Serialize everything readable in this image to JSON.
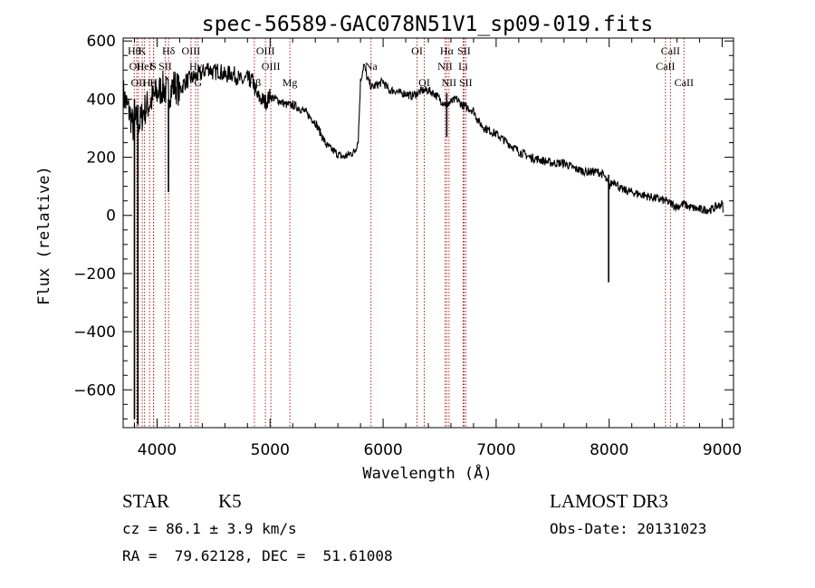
{
  "chart_data": {
    "type": "line",
    "title": "spec-56589-GAC078N51V1_sp09-019.fits",
    "xlabel": "Wavelength (Å)",
    "ylabel": "Flux (relative)",
    "xlim": [
      3700,
      9100
    ],
    "ylim": [
      -730,
      610
    ],
    "xticks": [
      4000,
      5000,
      6000,
      7000,
      8000,
      9000
    ],
    "xtick_labels": [
      "4000",
      "5000",
      "6000",
      "7000",
      "8000",
      "9000"
    ],
    "yticks": [
      -600,
      -400,
      -200,
      0,
      200,
      400,
      600
    ],
    "ytick_labels": [
      "−600",
      "−400",
      "−200",
      "0",
      "200",
      "400",
      "600"
    ],
    "grid": false,
    "series": [
      {
        "name": "flux",
        "x": [
          3700,
          3730,
          3760,
          3790,
          3820,
          3850,
          3880,
          3920,
          3960,
          4000,
          4050,
          4100,
          4150,
          4200,
          4250,
          4300,
          4350,
          4400,
          4450,
          4500,
          4550,
          4600,
          4650,
          4700,
          4750,
          4800,
          4850,
          4880,
          4920,
          4960,
          5000,
          5050,
          5100,
          5150,
          5200,
          5300,
          5400,
          5500,
          5600,
          5650,
          5700,
          5750,
          5780,
          5800,
          5830,
          5860,
          5900,
          5950,
          6000,
          6050,
          6100,
          6150,
          6200,
          6250,
          6300,
          6350,
          6400,
          6450,
          6500,
          6560,
          6600,
          6650,
          6700,
          6750,
          6800,
          6850,
          6900,
          7000,
          7100,
          7200,
          7300,
          7400,
          7500,
          7600,
          7700,
          7800,
          7900,
          7950,
          8000,
          8020,
          8050,
          8100,
          8200,
          8300,
          8400,
          8500,
          8550,
          8600,
          8660,
          8700,
          8800,
          8900,
          9000,
          9010
        ],
        "y": [
          420,
          380,
          350,
          300,
          330,
          320,
          360,
          380,
          400,
          420,
          440,
          420,
          450,
          430,
          460,
          470,
          480,
          490,
          510,
          490,
          500,
          480,
          490,
          480,
          460,
          470,
          460,
          410,
          400,
          390,
          410,
          400,
          390,
          380,
          380,
          360,
          320,
          240,
          210,
          200,
          210,
          220,
          260,
          460,
          520,
          470,
          440,
          450,
          460,
          430,
          430,
          420,
          420,
          410,
          420,
          430,
          430,
          420,
          400,
          380,
          390,
          400,
          380,
          370,
          360,
          320,
          300,
          280,
          250,
          220,
          200,
          190,
          180,
          180,
          160,
          150,
          150,
          140,
          100,
          110,
          120,
          90,
          80,
          70,
          60,
          50,
          40,
          30,
          40,
          30,
          20,
          20,
          40,
          20
        ]
      }
    ],
    "features": [
      {
        "x": 7995,
        "y_min": -230,
        "y_max": 140
      },
      {
        "x": 3830,
        "y_min": -720,
        "y_max": 380
      },
      {
        "x": 3800,
        "y_min": -700,
        "y_max": 400
      },
      {
        "x": 4101,
        "y_min": 80,
        "y_max": 400
      },
      {
        "x": 6563,
        "y_min": 270,
        "y_max": 420
      }
    ],
    "lines": [
      {
        "x": 3798,
        "label": "Hθ",
        "row": 0
      },
      {
        "x": 3820,
        "label": "OII",
        "row": 1
      },
      {
        "x": 3835,
        "label": "OII",
        "row": 2
      },
      {
        "x": 3869,
        "label": "K",
        "row": 0
      },
      {
        "x": 3889,
        "label": "HeI",
        "row": 1
      },
      {
        "x": 3934,
        "label": "Hη",
        "row": 2
      },
      {
        "x": 3968,
        "label": "S",
        "row": 1
      },
      {
        "x": 3970,
        "label": "H",
        "row": 2
      },
      {
        "x": 4072,
        "label": "SII",
        "row": 1
      },
      {
        "x": 4102,
        "label": "Hδ",
        "row": 0
      },
      {
        "x": 4300,
        "label": "OIII",
        "row": 0
      },
      {
        "x": 4341,
        "label": "Hγ",
        "row": 1
      },
      {
        "x": 4363,
        "label": "G",
        "row": 2
      },
      {
        "x": 4861,
        "label": "Hβ",
        "row": 2
      },
      {
        "x": 4959,
        "label": "OIII",
        "row": 0
      },
      {
        "x": 5007,
        "label": "OIII",
        "row": 1
      },
      {
        "x": 5175,
        "label": "Mg",
        "row": 2
      },
      {
        "x": 5893,
        "label": "Na",
        "row": 1
      },
      {
        "x": 6300,
        "label": "OI",
        "row": 0
      },
      {
        "x": 6364,
        "label": "OI",
        "row": 2
      },
      {
        "x": 6548,
        "label": "NII",
        "row": 1
      },
      {
        "x": 6563,
        "label": "Hα",
        "row": 0
      },
      {
        "x": 6583,
        "label": "NII",
        "row": 2
      },
      {
        "x": 6708,
        "label": "Li",
        "row": 1
      },
      {
        "x": 6716,
        "label": "SII",
        "row": 0
      },
      {
        "x": 6731,
        "label": "SII",
        "row": 2
      },
      {
        "x": 8498,
        "label": "CaII",
        "row": 1
      },
      {
        "x": 8542,
        "label": "CaII",
        "row": 0
      },
      {
        "x": 8662,
        "label": "CaII",
        "row": 2
      }
    ]
  },
  "info": {
    "object_type": "STAR",
    "subclass": "K5",
    "survey": "LAMOST DR3",
    "redshift": "cz = 86.1 ± 3.9 km/s",
    "obs_date": "Obs-Date: 20131023",
    "coords": "RA =  79.62128, DEC =  51.61008"
  },
  "colors": {
    "line_marker": "#b22222",
    "spectrum": "#000000",
    "axis": "#000000"
  }
}
